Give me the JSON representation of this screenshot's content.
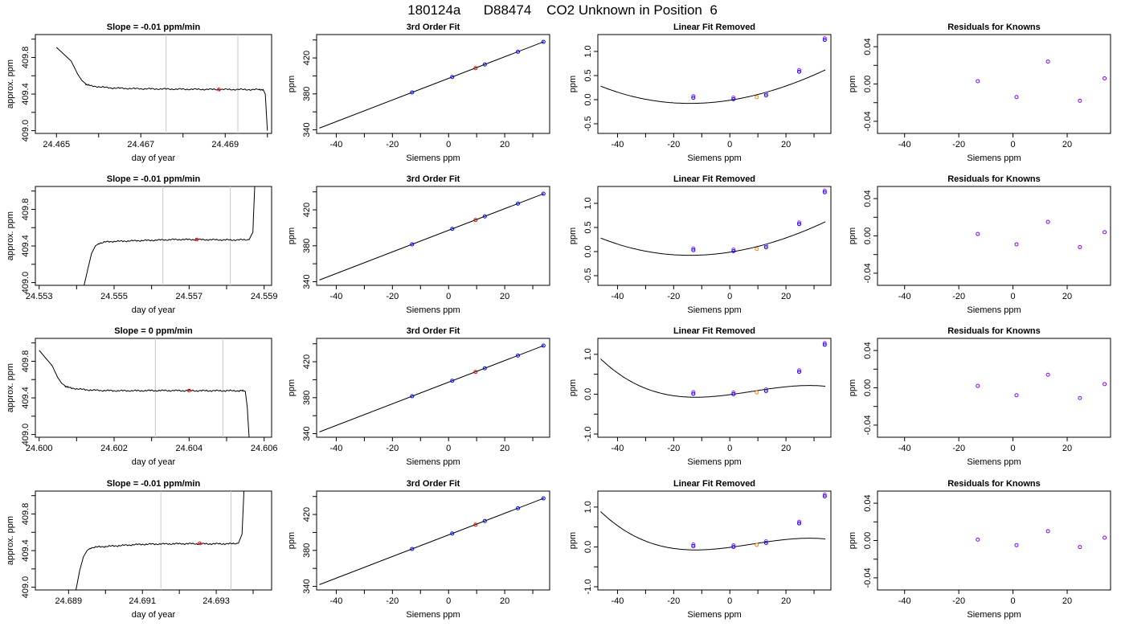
{
  "title": "180124a      D88474    CO2 Unknown in Position  6",
  "chart_data": [
    {
      "type": "line",
      "row": 0,
      "panel": "time-series",
      "title": "Slope =  -0.01  ppm/min",
      "xlabel": "day of year",
      "ylabel": "approx. ppm",
      "xlim": [
        24.4645,
        24.4701
      ],
      "ylim": [
        408.97,
        410.05
      ],
      "xticks": [
        24.465,
        24.466,
        24.467,
        24.468,
        24.469,
        24.47
      ],
      "xticklabels": [
        "24.465",
        "",
        "24.467",
        "",
        "24.469",
        ""
      ],
      "yticks": [
        409.0,
        409.2,
        409.4,
        409.6,
        409.8,
        410.0
      ],
      "yticklabels": [
        "409.0",
        "",
        "409.4",
        "",
        "409.8",
        ""
      ],
      "grey_lines": [
        24.4676,
        24.4693
      ],
      "mean_point": [
        24.46885,
        409.45
      ],
      "x": [
        24.465,
        24.46535,
        24.4655,
        24.4656,
        24.4657,
        24.4658,
        24.466,
        24.4662,
        24.4664,
        24.4666,
        24.4668,
        24.467,
        24.4672,
        24.4674,
        24.4676,
        24.4678,
        24.468,
        24.4682,
        24.4684,
        24.4686,
        24.4688,
        24.469,
        24.4692,
        24.4694,
        24.4696,
        24.4698,
        24.4699,
        24.46995,
        24.47
      ],
      "y": [
        409.91,
        409.76,
        409.62,
        409.55,
        409.51,
        409.49,
        409.48,
        409.47,
        409.465,
        409.462,
        409.46,
        409.458,
        409.457,
        409.456,
        409.455,
        409.454,
        409.453,
        409.452,
        409.452,
        409.451,
        409.451,
        409.45,
        409.45,
        409.45,
        409.449,
        409.449,
        409.45,
        409.4,
        409.0
      ]
    },
    {
      "type": "scatter",
      "row": 0,
      "panel": "cubic-fit",
      "title": "3rd Order Fit",
      "xlabel": "Siemens ppm",
      "ylabel": "ppm",
      "xlim": [
        -47,
        36
      ],
      "ylim": [
        336,
        446
      ],
      "xticks": [
        -40,
        -30,
        -20,
        -10,
        0,
        10,
        20,
        30
      ],
      "xticklabels": [
        "-40",
        "",
        "-20",
        "",
        "0",
        "",
        "20",
        ""
      ],
      "yticks": [
        340,
        360,
        380,
        400,
        420,
        440
      ],
      "yticklabels": [
        "340",
        "",
        "380",
        "",
        "420",
        ""
      ],
      "known_x": [
        -13.0,
        1.3,
        12.9,
        24.7,
        33.8
      ],
      "known_y": [
        381.6,
        398.8,
        412.7,
        426.9,
        437.9
      ],
      "unknown": [
        9.6,
        408.7
      ],
      "fit": {
        "intercept": 397.24,
        "slope": 1.2022
      }
    },
    {
      "type": "scatter",
      "row": 0,
      "panel": "linear-removed",
      "title": "Linear Fit Removed",
      "xlabel": "Siemens ppm",
      "ylabel": "ppm",
      "xlim": [
        -47,
        36
      ],
      "ylim": [
        -0.7,
        1.35
      ],
      "xticks": [
        -40,
        -30,
        -20,
        -10,
        0,
        10,
        20,
        30
      ],
      "xticklabels": [
        "-40",
        "",
        "-20",
        "",
        "0",
        "",
        "20",
        ""
      ],
      "yticks": [
        -0.5,
        0.0,
        0.5,
        1.0
      ],
      "yticklabels": [
        "-0.5",
        "0.0",
        "0.5",
        "1.0"
      ],
      "known_x": [
        -13.0,
        1.3,
        12.9,
        24.7,
        33.8
      ],
      "known_y": [
        0.04,
        0.01,
        0.09,
        0.58,
        1.24
      ],
      "unknown": [
        9.6,
        0.055
      ],
      "curve": {
        "x0": 1.3,
        "a": 0.0098,
        "b": 0.0003,
        "c": -6.9e-07
      }
    },
    {
      "type": "scatter",
      "row": 0,
      "panel": "residuals",
      "title": "Residuals for Knowns",
      "xlabel": "Siemens ppm",
      "ylabel": "ppm",
      "xlim": [
        -50,
        36
      ],
      "ylim": [
        -0.053,
        0.053
      ],
      "xticks": [
        -40,
        -20,
        0,
        20
      ],
      "xticklabels": [
        "-40",
        "-20",
        "0",
        "20"
      ],
      "yticks": [
        -0.04,
        -0.02,
        0.0,
        0.02,
        0.04
      ],
      "yticklabels": [
        "-0.04",
        "",
        "0.00",
        "",
        "0.04"
      ],
      "x": [
        -13.0,
        1.3,
        12.9,
        24.7,
        33.8
      ],
      "y": [
        0.003,
        -0.014,
        0.024,
        -0.018,
        0.006
      ]
    },
    {
      "type": "line",
      "row": 1,
      "panel": "time-series",
      "title": "Slope =  -0.01  ppm/min",
      "xlabel": "day of year",
      "ylabel": "approx. ppm",
      "xlim": [
        24.5529,
        24.5592
      ],
      "ylim": [
        408.97,
        410.05
      ],
      "xticks": [
        24.553,
        24.554,
        24.555,
        24.556,
        24.557,
        24.558,
        24.559
      ],
      "xticklabels": [
        "24.553",
        "",
        "24.555",
        "",
        "24.557",
        "",
        "24.559"
      ],
      "yticks": [
        409.0,
        409.2,
        409.4,
        409.6,
        409.8,
        410.0
      ],
      "yticklabels": [
        "409.0",
        "",
        "409.4",
        "",
        "409.8",
        ""
      ],
      "grey_lines": [
        24.5563,
        24.5581
      ],
      "mean_point": [
        24.5572,
        409.47
      ],
      "x": [
        24.5542,
        24.5543,
        24.5544,
        24.5545,
        24.5546,
        24.5548,
        24.555,
        24.5552,
        24.5554,
        24.5556,
        24.5558,
        24.556,
        24.5562,
        24.5564,
        24.5566,
        24.5568,
        24.557,
        24.5572,
        24.5574,
        24.5576,
        24.5578,
        24.558,
        24.5582,
        24.5584,
        24.5586,
        24.5587,
        24.55875
      ],
      "y": [
        408.97,
        409.15,
        409.32,
        409.4,
        409.43,
        409.445,
        409.45,
        409.452,
        409.455,
        409.458,
        409.46,
        409.462,
        409.465,
        409.468,
        409.47,
        409.471,
        409.47,
        409.47,
        409.469,
        409.468,
        409.467,
        409.466,
        409.466,
        409.467,
        409.47,
        409.55,
        410.05
      ]
    },
    {
      "type": "scatter",
      "row": 1,
      "panel": "cubic-fit",
      "title": "3rd Order Fit",
      "xlabel": "Siemens ppm",
      "ylabel": "ppm",
      "xlim": [
        -47,
        36
      ],
      "ylim": [
        336,
        446
      ],
      "xticks": [
        -40,
        -30,
        -20,
        -10,
        0,
        10,
        20,
        30
      ],
      "xticklabels": [
        "-40",
        "",
        "-20",
        "",
        "0",
        "",
        "20",
        ""
      ],
      "yticks": [
        340,
        360,
        380,
        400,
        420,
        440
      ],
      "yticklabels": [
        "340",
        "",
        "380",
        "",
        "420",
        ""
      ],
      "known_x": [
        -13.0,
        1.3,
        12.9,
        24.7,
        33.8
      ],
      "known_y": [
        381.6,
        398.8,
        412.7,
        426.9,
        437.9
      ],
      "unknown": [
        9.6,
        408.7
      ],
      "fit": {
        "intercept": 397.24,
        "slope": 1.2022
      }
    },
    {
      "type": "scatter",
      "row": 1,
      "panel": "linear-removed",
      "title": "Linear Fit Removed",
      "xlabel": "Siemens ppm",
      "ylabel": "ppm",
      "xlim": [
        -47,
        36
      ],
      "ylim": [
        -0.7,
        1.35
      ],
      "xticks": [
        -40,
        -30,
        -20,
        -10,
        0,
        10,
        20,
        30
      ],
      "xticklabels": [
        "-40",
        "",
        "-20",
        "",
        "0",
        "",
        "20",
        ""
      ],
      "yticks": [
        -0.5,
        0.0,
        0.5,
        1.0
      ],
      "yticklabels": [
        "-0.5",
        "0.0",
        "0.5",
        "1.0"
      ],
      "known_x": [
        -13.0,
        1.3,
        12.9,
        24.7,
        33.8
      ],
      "known_y": [
        0.03,
        0.01,
        0.09,
        0.57,
        1.23
      ],
      "unknown": [
        9.6,
        0.055
      ],
      "curve": {
        "x0": 1.3,
        "a": 0.0098,
        "b": 0.0003,
        "c": -6.9e-07
      }
    },
    {
      "type": "scatter",
      "row": 1,
      "panel": "residuals",
      "title": "Residuals for Knowns",
      "xlabel": "Siemens ppm",
      "ylabel": "ppm",
      "xlim": [
        -50,
        36
      ],
      "ylim": [
        -0.053,
        0.053
      ],
      "xticks": [
        -40,
        -20,
        0,
        20
      ],
      "xticklabels": [
        "-40",
        "-20",
        "0",
        "20"
      ],
      "yticks": [
        -0.04,
        -0.02,
        0.0,
        0.02,
        0.04
      ],
      "yticklabels": [
        "-0.04",
        "",
        "0.00",
        "",
        "0.04"
      ],
      "x": [
        -13.0,
        1.3,
        12.9,
        24.7,
        33.8
      ],
      "y": [
        0.002,
        -0.009,
        0.015,
        -0.012,
        0.004
      ]
    },
    {
      "type": "line",
      "row": 2,
      "panel": "time-series",
      "title": "Slope =  0  ppm/min",
      "xlabel": "day of year",
      "ylabel": "approx. ppm",
      "xlim": [
        24.5999,
        24.6062
      ],
      "ylim": [
        408.97,
        410.05
      ],
      "xticks": [
        24.6,
        24.601,
        24.602,
        24.603,
        24.604,
        24.605,
        24.606
      ],
      "xticklabels": [
        "24.600",
        "",
        "24.602",
        "",
        "24.604",
        "",
        "24.606"
      ],
      "yticks": [
        409.0,
        409.2,
        409.4,
        409.6,
        409.8,
        410.0
      ],
      "yticklabels": [
        "409.0",
        "",
        "409.4",
        "",
        "409.8",
        ""
      ],
      "grey_lines": [
        24.6031,
        24.6049
      ],
      "mean_point": [
        24.604,
        409.48
      ],
      "x": [
        24.6,
        24.60035,
        24.6005,
        24.6006,
        24.6007,
        24.6008,
        24.601,
        24.6012,
        24.6014,
        24.6016,
        24.6018,
        24.602,
        24.6022,
        24.6024,
        24.6026,
        24.6028,
        24.603,
        24.6032,
        24.6034,
        24.6036,
        24.6038,
        24.604,
        24.6042,
        24.6044,
        24.6046,
        24.6048,
        24.605,
        24.6052,
        24.6054,
        24.6055,
        24.60555,
        24.6056
      ],
      "y": [
        409.92,
        409.75,
        409.62,
        409.56,
        409.53,
        409.51,
        409.5,
        409.49,
        409.485,
        409.482,
        409.48,
        409.478,
        409.478,
        409.478,
        409.478,
        409.479,
        409.48,
        409.48,
        409.48,
        409.48,
        409.479,
        409.479,
        409.478,
        409.478,
        409.478,
        409.478,
        409.478,
        409.478,
        409.478,
        409.47,
        409.3,
        408.97
      ]
    },
    {
      "type": "scatter",
      "row": 2,
      "panel": "cubic-fit",
      "title": "3rd Order Fit",
      "xlabel": "Siemens ppm",
      "ylabel": "ppm",
      "xlim": [
        -47,
        36
      ],
      "ylim": [
        336,
        446
      ],
      "xticks": [
        -40,
        -30,
        -20,
        -10,
        0,
        10,
        20,
        30
      ],
      "xticklabels": [
        "-40",
        "",
        "-20",
        "",
        "0",
        "",
        "20",
        ""
      ],
      "yticks": [
        340,
        360,
        380,
        400,
        420,
        440
      ],
      "yticklabels": [
        "340",
        "",
        "380",
        "",
        "420",
        ""
      ],
      "known_x": [
        -13.0,
        1.3,
        12.9,
        24.7,
        33.8
      ],
      "known_y": [
        381.6,
        398.8,
        412.7,
        426.9,
        437.9
      ],
      "unknown": [
        9.6,
        408.7
      ],
      "fit": {
        "intercept": 397.24,
        "slope": 1.2022
      }
    },
    {
      "type": "scatter",
      "row": 2,
      "panel": "linear-removed",
      "title": "Linear Fit Removed",
      "xlabel": "Siemens ppm",
      "ylabel": "ppm",
      "xlim": [
        -47,
        36
      ],
      "ylim": [
        -1.08,
        1.4
      ],
      "xticks": [
        -40,
        -30,
        -20,
        -10,
        0,
        10,
        20,
        30
      ],
      "xticklabels": [
        "-40",
        "",
        "-20",
        "",
        "0",
        "",
        "20",
        ""
      ],
      "yticks": [
        -1.0,
        -0.5,
        0.0,
        0.5,
        1.0
      ],
      "yticklabels": [
        "-1.0",
        "",
        "0.0",
        "",
        "1.0"
      ],
      "known_x": [
        -13.0,
        1.3,
        12.9,
        24.7,
        33.8
      ],
      "known_y": [
        0.01,
        0.0,
        0.08,
        0.56,
        1.24
      ],
      "unknown": [
        9.6,
        0.045
      ],
      "curve": {
        "x0": 1.3,
        "a": 0.0097,
        "b": 0.00018,
        "c": -8.9e-06
      }
    },
    {
      "type": "scatter",
      "row": 2,
      "panel": "residuals",
      "title": "Residuals for Knowns",
      "xlabel": "Siemens ppm",
      "ylabel": "ppm",
      "xlim": [
        -50,
        36
      ],
      "ylim": [
        -0.053,
        0.053
      ],
      "xticks": [
        -40,
        -20,
        0,
        20
      ],
      "xticklabels": [
        "-40",
        "-20",
        "0",
        "20"
      ],
      "yticks": [
        -0.04,
        -0.02,
        0.0,
        0.02,
        0.04
      ],
      "yticklabels": [
        "-0.04",
        "",
        "0.00",
        "",
        "0.04"
      ],
      "x": [
        -13.0,
        1.3,
        12.9,
        24.7,
        33.8
      ],
      "y": [
        0.002,
        -0.008,
        0.014,
        -0.011,
        0.004
      ]
    },
    {
      "type": "line",
      "row": 3,
      "panel": "time-series",
      "title": "Slope =  -0.01  ppm/min",
      "xlabel": "day of year",
      "ylabel": "approx. ppm",
      "xlim": [
        24.6881,
        24.6945
      ],
      "ylim": [
        408.97,
        410.05
      ],
      "xticks": [
        24.689,
        24.69,
        24.691,
        24.692,
        24.693,
        24.694
      ],
      "xticklabels": [
        "24.689",
        "",
        "24.691",
        "",
        "24.693",
        ""
      ],
      "yticks": [
        409.0,
        409.2,
        409.4,
        409.6,
        409.8,
        410.0
      ],
      "yticklabels": [
        "409.0",
        "",
        "409.4",
        "",
        "409.8",
        ""
      ],
      "grey_lines": [
        24.6915,
        24.6934
      ],
      "mean_point": [
        24.69255,
        409.48
      ],
      "x": [
        24.6892,
        24.6893,
        24.6894,
        24.6895,
        24.6896,
        24.6898,
        24.69,
        24.6902,
        24.6904,
        24.6906,
        24.6908,
        24.691,
        24.6912,
        24.6914,
        24.6916,
        24.6918,
        24.692,
        24.6922,
        24.6924,
        24.6926,
        24.6928,
        24.693,
        24.6932,
        24.6934,
        24.6936,
        24.6937,
        24.69375
      ],
      "y": [
        408.97,
        409.18,
        409.33,
        409.4,
        409.43,
        409.44,
        409.445,
        409.45,
        409.455,
        409.46,
        409.465,
        409.468,
        409.47,
        409.472,
        409.473,
        409.474,
        409.475,
        409.475,
        409.475,
        409.474,
        409.474,
        409.474,
        409.474,
        409.475,
        409.48,
        409.58,
        410.05
      ]
    },
    {
      "type": "scatter",
      "row": 3,
      "panel": "cubic-fit",
      "title": "3rd Order Fit",
      "xlabel": "Siemens ppm",
      "ylabel": "ppm",
      "xlim": [
        -47,
        36
      ],
      "ylim": [
        336,
        446
      ],
      "xticks": [
        -40,
        -30,
        -20,
        -10,
        0,
        10,
        20,
        30
      ],
      "xticklabels": [
        "-40",
        "",
        "-20",
        "",
        "0",
        "",
        "20",
        ""
      ],
      "yticks": [
        340,
        360,
        380,
        400,
        420,
        440
      ],
      "yticklabels": [
        "340",
        "",
        "380",
        "",
        "420",
        ""
      ],
      "known_x": [
        -13.0,
        1.3,
        12.9,
        24.7,
        33.8
      ],
      "known_y": [
        381.6,
        398.8,
        412.7,
        426.9,
        437.9
      ],
      "unknown": [
        9.6,
        408.7
      ],
      "fit": {
        "intercept": 397.24,
        "slope": 1.2022
      }
    },
    {
      "type": "scatter",
      "row": 3,
      "panel": "linear-removed",
      "title": "Linear Fit Removed",
      "xlabel": "Siemens ppm",
      "ylabel": "ppm",
      "xlim": [
        -47,
        36
      ],
      "ylim": [
        -1.08,
        1.4
      ],
      "xticks": [
        -40,
        -30,
        -20,
        -10,
        0,
        10,
        20,
        30
      ],
      "xticklabels": [
        "-40",
        "",
        "-20",
        "",
        "0",
        "",
        "20",
        ""
      ],
      "yticks": [
        -1.0,
        -0.5,
        0.0,
        0.5,
        1.0
      ],
      "yticklabels": [
        "-1.0",
        "",
        "0.0",
        "",
        "1.0"
      ],
      "known_x": [
        -13.0,
        1.3,
        12.9,
        24.7,
        33.8
      ],
      "known_y": [
        0.02,
        0.0,
        0.1,
        0.59,
        1.27
      ],
      "unknown": [
        9.6,
        0.05
      ],
      "curve": {
        "x0": 1.3,
        "a": 0.0097,
        "b": 0.00018,
        "c": -8.9e-06
      }
    },
    {
      "type": "scatter",
      "row": 3,
      "panel": "residuals",
      "title": "Residuals for Knowns",
      "xlabel": "Siemens ppm",
      "ylabel": "ppm",
      "xlim": [
        -50,
        36
      ],
      "ylim": [
        -0.053,
        0.053
      ],
      "xticks": [
        -40,
        -20,
        0,
        20
      ],
      "xticklabels": [
        "-40",
        "-20",
        "0",
        "20"
      ],
      "yticks": [
        -0.04,
        -0.02,
        0.0,
        0.02,
        0.04
      ],
      "yticklabels": [
        "-0.04",
        "",
        "0.00",
        "",
        "0.04"
      ],
      "x": [
        -13.0,
        1.3,
        12.9,
        24.7,
        33.8
      ],
      "y": [
        0.001,
        -0.005,
        0.01,
        -0.007,
        0.003
      ]
    }
  ],
  "colors": {
    "line": "#000000",
    "known_point": "#0000ff",
    "unknown_point": "#ff0000",
    "residual_point": "#8000ff",
    "grey_line": "#c8c8c8"
  }
}
